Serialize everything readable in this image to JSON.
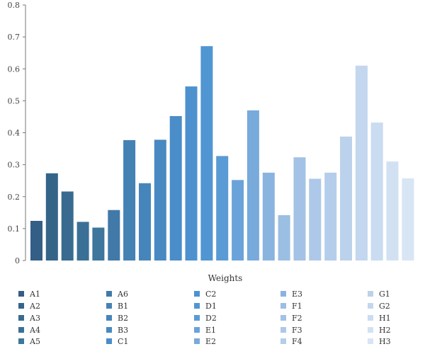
{
  "chart_data": {
    "type": "bar",
    "xlabel": "Weights",
    "ylabel": "",
    "ylim": [
      0,
      0.8
    ],
    "yticks": [
      "0",
      "0.1",
      "0.2",
      "0.3",
      "0.4",
      "0.5",
      "0.6",
      "0.7",
      "0.8"
    ],
    "grid": false,
    "legend_position": "bottom",
    "legend_columns": 5,
    "categories": [
      "A1",
      "A2",
      "A3",
      "A4",
      "A5",
      "A6",
      "B1",
      "B2",
      "B3",
      "C1",
      "C2",
      "D1",
      "D2",
      "E1",
      "E2",
      "E3",
      "F1",
      "F2",
      "F3",
      "F4",
      "G1",
      "G2",
      "H1",
      "H2",
      "H3"
    ],
    "values": [
      0.124,
      0.273,
      0.216,
      0.121,
      0.103,
      0.158,
      0.377,
      0.242,
      0.378,
      0.452,
      0.545,
      0.671,
      0.327,
      0.252,
      0.47,
      0.275,
      0.142,
      0.323,
      0.256,
      0.275,
      0.388,
      0.61,
      0.432,
      0.31,
      0.257
    ],
    "colors": [
      "#335e85",
      "#356489",
      "#386b8f",
      "#3b7096",
      "#3e769c",
      "#4179a8",
      "#4582b4",
      "#4685bc",
      "#4889c2",
      "#4a8dc8",
      "#4d91ce",
      "#5096d2",
      "#5a9bd5",
      "#6aa3d9",
      "#78aadb",
      "#8ab4df",
      "#9bbee3",
      "#a3c2e5",
      "#adc8e8",
      "#b4cdea",
      "#bcd2ec",
      "#c3d7ee",
      "#cadcf0",
      "#d2e1f2",
      "#d8e5f4"
    ]
  }
}
